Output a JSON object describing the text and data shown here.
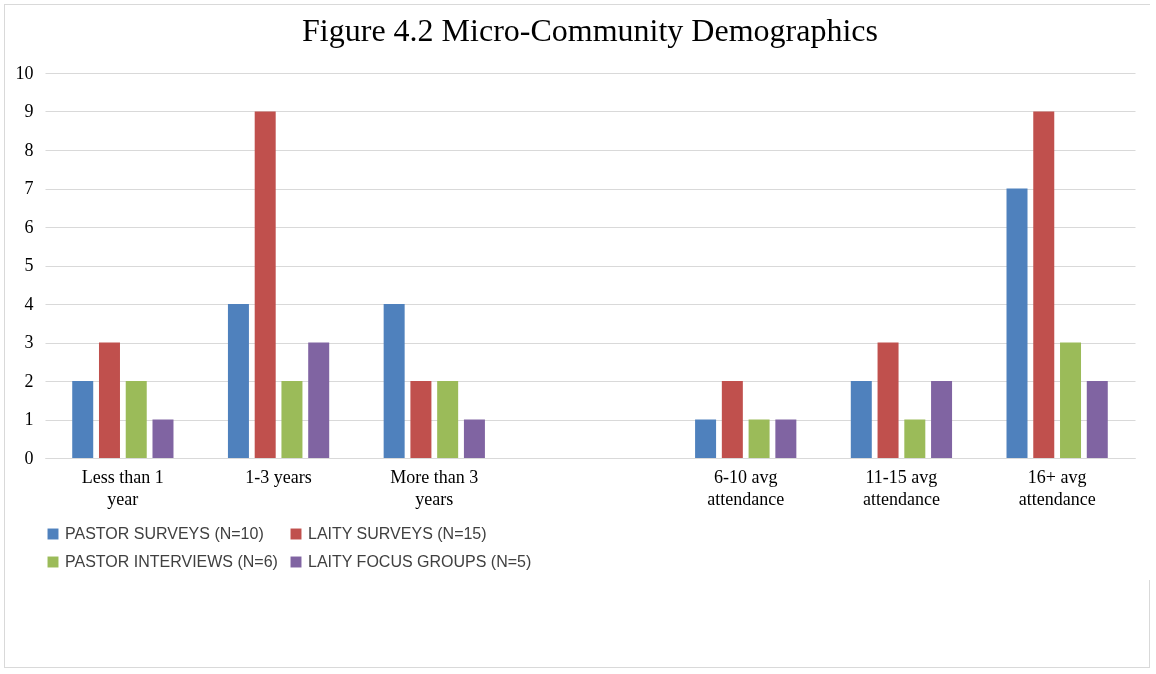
{
  "chart_data": {
    "type": "bar",
    "title": "Figure 4.2 Micro-Community Demographics",
    "categories": [
      "Less than 1 year",
      "1-3 years",
      "More than 3 years",
      null,
      "6-10 avg attendance",
      "11-15 avg attendance",
      "16+ avg attendance"
    ],
    "series": [
      {
        "name": "PASTOR SURVEYS (N=10)",
        "color": "#4f81bd",
        "values": [
          2,
          4,
          4,
          null,
          1,
          2,
          7
        ]
      },
      {
        "name": "LAITY SURVEYS (N=15)",
        "color": "#c0504d",
        "values": [
          3,
          9,
          2,
          null,
          2,
          3,
          9
        ]
      },
      {
        "name": "PASTOR INTERVIEWS (N=6)",
        "color": "#9bbb59",
        "values": [
          2,
          2,
          2,
          null,
          1,
          1,
          3
        ]
      },
      {
        "name": "LAITY FOCUS GROUPS (N=5)",
        "color": "#8064a2",
        "values": [
          1,
          3,
          1,
          null,
          1,
          2,
          2
        ]
      }
    ],
    "ylim": [
      0,
      10
    ],
    "yticks": [
      0,
      1,
      2,
      3,
      4,
      5,
      6,
      7,
      8,
      9,
      10
    ],
    "grid": "y",
    "legend": "bottom"
  }
}
